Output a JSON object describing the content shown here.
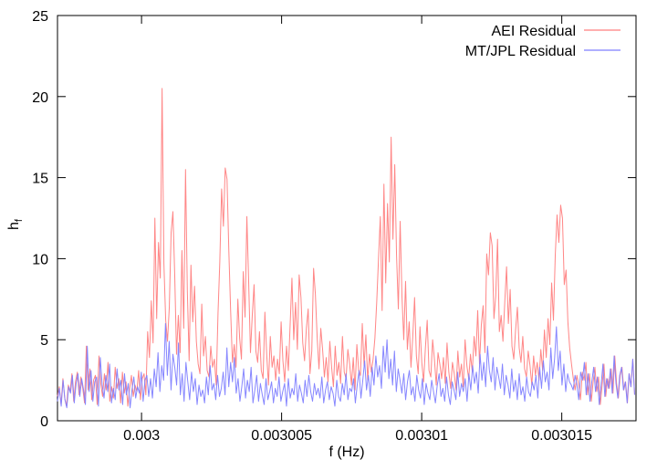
{
  "chart_data": {
    "type": "line",
    "title": "",
    "xlabel": "f (Hz)",
    "ylabel": "h",
    "ylabel_subscript": "f",
    "xlim": [
      0.2997,
      0.301765
    ],
    "ylim": [
      0,
      25
    ],
    "x_unit_scale": 0.01,
    "grid": false,
    "legend_position": "top-right",
    "x_ticks": [
      0.3,
      0.3005,
      0.301,
      0.3015
    ],
    "x_tick_labels": [
      "0.003",
      "0.003005",
      "0.00301",
      "0.003015"
    ],
    "y_ticks": [
      0,
      5,
      10,
      15,
      20,
      25
    ],
    "y_tick_labels": [
      "0",
      "5",
      "10",
      "15",
      "20",
      "25"
    ],
    "series": [
      {
        "name": "AEI Residual",
        "color": "#ff7f7f",
        "x_start": 0.2997,
        "x_end": 0.30176,
        "values": [
          1.5,
          2.1,
          1.0,
          2.6,
          1.4,
          0.9,
          2.2,
          1.8,
          2.9,
          1.2,
          2.4,
          3.0,
          1.6,
          2.7,
          2.0,
          1.1,
          4.6,
          1.9,
          3.2,
          1.3,
          2.5,
          2.8,
          1.0,
          4.0,
          2.3,
          1.5,
          2.9,
          1.9,
          3.6,
          1.2,
          2.1,
          1.4,
          3.3,
          2.0,
          2.6,
          1.1,
          3.0,
          1.7,
          2.4,
          0.9,
          2.0,
          2.8,
          1.5,
          2.2,
          1.8,
          3.1,
          1.3,
          2.6,
          2.9,
          1.6,
          5.5,
          3.9,
          7.4,
          4.8,
          12.5,
          6.3,
          11.0,
          8.8,
          20.5,
          9.7,
          6.2,
          4.9,
          7.0,
          11.6,
          12.9,
          9.0,
          4.1,
          6.5,
          4.2,
          10.5,
          5.7,
          15.5,
          8.0,
          3.7,
          9.6,
          6.1,
          8.3,
          4.9,
          3.5,
          2.9,
          7.2,
          4.0,
          5.2,
          3.1,
          2.7,
          4.6,
          3.3,
          3.8,
          2.2,
          6.6,
          9.8,
          14.3,
          12.0,
          15.6,
          14.9,
          10.5,
          6.8,
          3.6,
          4.7,
          3.3,
          7.5,
          5.1,
          3.8,
          9.2,
          6.4,
          12.6,
          8.6,
          4.2,
          6.5,
          8.4,
          4.3,
          3.6,
          5.5,
          3.1,
          2.6,
          6.7,
          4.1,
          2.2,
          5.2,
          3.3,
          4.0,
          2.5,
          3.8,
          2.9,
          6.1,
          3.7,
          2.4,
          4.6,
          3.1,
          5.9,
          8.8,
          5.0,
          7.3,
          4.4,
          9.0,
          7.6,
          4.8,
          3.7,
          5.7,
          6.9,
          2.9,
          4.3,
          9.4,
          7.8,
          5.1,
          3.2,
          5.7,
          4.4,
          2.7,
          3.9,
          2.4,
          4.9,
          3.3,
          2.1,
          4.6,
          2.8,
          3.6,
          2.3,
          5.2,
          3.0,
          2.6,
          4.4,
          3.5,
          2.2,
          3.9,
          1.9,
          4.7,
          3.1,
          2.8,
          6.0,
          3.4,
          5.3,
          2.5,
          4.1,
          3.0,
          3.8,
          5.1,
          7.3,
          10.0,
          12.6,
          6.8,
          14.6,
          8.5,
          13.4,
          9.8,
          17.5,
          11.2,
          15.8,
          10.2,
          6.9,
          12.3,
          7.7,
          5.0,
          8.6,
          4.4,
          6.1,
          3.3,
          5.2,
          7.6,
          4.0,
          2.9,
          5.8,
          3.6,
          2.4,
          4.5,
          6.2,
          3.1,
          2.7,
          5.0,
          3.8,
          2.2,
          4.2,
          3.5,
          2.6,
          3.9,
          2.3,
          4.8,
          3.0,
          2.0,
          3.6,
          2.9,
          1.9,
          4.3,
          2.7,
          3.5,
          2.1,
          5.0,
          3.4,
          2.6,
          4.1,
          3.0,
          5.2,
          4.0,
          6.8,
          3.5,
          5.9,
          7.1,
          4.2,
          10.3,
          9.0,
          11.6,
          10.8,
          6.3,
          7.7,
          11.2,
          5.5,
          6.5,
          4.9,
          7.3,
          9.5,
          6.0,
          8.1,
          4.6,
          3.8,
          5.6,
          7.0,
          4.5,
          3.6,
          5.2,
          3.2,
          2.7,
          4.3,
          3.4,
          2.2,
          4.0,
          2.8,
          3.6,
          2.5,
          4.4,
          3.1,
          5.6,
          3.9,
          6.3,
          4.7,
          8.5,
          6.2,
          10.2,
          12.7,
          11.0,
          13.3,
          12.5,
          8.4,
          9.3,
          6.1,
          4.5,
          3.5,
          2.6,
          1.9,
          2.8,
          2.2,
          1.3,
          3.0,
          2.5,
          3.6,
          1.6,
          2.9,
          1.2,
          2.4,
          3.3,
          1.8,
          2.7,
          1.0,
          2.2,
          3.5,
          1.5,
          2.6,
          2.0,
          3.2,
          1.7,
          4.0,
          2.3,
          1.4,
          2.8,
          3.3,
          1.9,
          2.4,
          1.1,
          2.9,
          2.1,
          3.8,
          1.6
        ]
      },
      {
        "name": "MT/JPL Residual",
        "color": "#7f7fff",
        "x_start": 0.2997,
        "x_end": 0.30176,
        "values": [
          1.2,
          2.0,
          0.9,
          2.5,
          1.3,
          0.8,
          2.1,
          1.7,
          2.8,
          1.1,
          2.3,
          2.9,
          1.5,
          2.6,
          1.9,
          1.0,
          4.6,
          1.8,
          3.1,
          1.2,
          2.4,
          2.7,
          0.9,
          3.9,
          2.2,
          1.4,
          2.8,
          1.8,
          3.5,
          1.1,
          2.0,
          1.3,
          3.2,
          1.9,
          2.5,
          1.0,
          2.9,
          1.6,
          2.3,
          0.8,
          1.9,
          2.7,
          1.4,
          2.1,
          1.7,
          3.0,
          1.2,
          2.5,
          2.8,
          1.5,
          2.6,
          1.4,
          3.2,
          2.1,
          4.2,
          1.8,
          3.4,
          2.5,
          6.0,
          2.8,
          4.9,
          1.9,
          4.1,
          3.3,
          2.2,
          4.8,
          1.6,
          2.9,
          1.2,
          3.6,
          2.4,
          1.3,
          3.0,
          1.8,
          2.6,
          1.0,
          2.2,
          1.5,
          1.9,
          1.1,
          2.7,
          1.6,
          3.4,
          1.9,
          2.3,
          1.3,
          2.8,
          1.5,
          2.0,
          3.0,
          1.6,
          4.5,
          2.1,
          3.6,
          2.4,
          3.9,
          1.7,
          2.6,
          1.2,
          2.1,
          3.2,
          1.4,
          2.5,
          1.8,
          3.3,
          1.1,
          1.9,
          2.8,
          1.2,
          2.3,
          1.6,
          1.0,
          2.6,
          1.3,
          1.8,
          2.4,
          1.1,
          2.0,
          1.5,
          2.7,
          1.2,
          1.8,
          2.3,
          0.9,
          2.6,
          1.4,
          2.0,
          1.6,
          2.9,
          1.2,
          2.2,
          1.7,
          1.1,
          2.5,
          1.5,
          2.8,
          1.8,
          1.2,
          2.3,
          1.6,
          2.0,
          1.4,
          2.7,
          1.1,
          1.9,
          2.4,
          1.3,
          2.1,
          1.7,
          0.9,
          2.5,
          1.5,
          1.2,
          2.3,
          1.6,
          2.9,
          1.3,
          2.0,
          1.8,
          2.6,
          1.1,
          2.2,
          3.1,
          1.4,
          2.5,
          3.7,
          1.9,
          2.8,
          1.5,
          3.3,
          2.2,
          4.0,
          2.7,
          3.4,
          2.0,
          4.6,
          3.0,
          5.0,
          2.6,
          3.8,
          2.2,
          4.3,
          1.8,
          3.2,
          2.5,
          1.7,
          2.9,
          1.3,
          2.4,
          3.1,
          1.6,
          2.1,
          1.2,
          2.8,
          1.9,
          1.4,
          2.6,
          1.0,
          2.3,
          1.7,
          1.3,
          2.5,
          1.8,
          1.1,
          2.2,
          2.9,
          1.5,
          2.0,
          1.2,
          2.7,
          1.6,
          1.0,
          2.4,
          1.9,
          1.3,
          3.0,
          1.5,
          2.3,
          1.8,
          2.6,
          1.2,
          2.9,
          1.9,
          3.4,
          2.3,
          3.0,
          1.7,
          4.1,
          2.5,
          3.6,
          2.1,
          4.6,
          3.1,
          2.4,
          3.9,
          1.9,
          3.3,
          2.7,
          2.0,
          3.5,
          1.6,
          2.8,
          2.2,
          1.4,
          3.2,
          1.8,
          2.5,
          1.3,
          2.9,
          1.6,
          2.1,
          1.2,
          2.7,
          1.8,
          1.5,
          2.4,
          1.9,
          2.8,
          1.4,
          3.3,
          2.0,
          3.7,
          2.4,
          3.0,
          1.9,
          4.5,
          2.6,
          3.8,
          5.8,
          3.1,
          4.3,
          2.2,
          3.5,
          1.8,
          2.9,
          2.4,
          2.2,
          1.9,
          2.8,
          2.2,
          1.3,
          3.0,
          2.5,
          3.6,
          1.6,
          2.9,
          1.2,
          2.4,
          3.3,
          1.8,
          2.7,
          1.0,
          2.2,
          3.5,
          1.5,
          2.6,
          2.0,
          3.2,
          1.7,
          4.0,
          2.3,
          1.4,
          2.8,
          3.3,
          1.9,
          2.4,
          1.1,
          2.9,
          2.1,
          3.8,
          1.6
        ]
      }
    ]
  }
}
